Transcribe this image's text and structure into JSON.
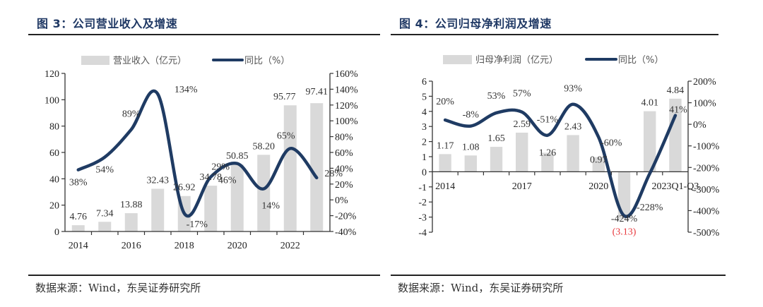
{
  "colors": {
    "bar": "#d9d9d9",
    "line": "#1f3b63",
    "title": "#1f3864",
    "negative_label": "#e8383d",
    "axis": "#333333"
  },
  "source_text": "数据来源：Wind，东吴证券研究所",
  "chart_data": [
    {
      "type": "bar+line",
      "title": "图 3：公司营业收入及增速",
      "legend": {
        "bar": "营业收入（亿元）",
        "line": "同比（%）",
        "position": "top"
      },
      "categories": [
        "2014",
        "2015",
        "2016",
        "2017",
        "2018",
        "2019",
        "2020",
        "2021",
        "2022",
        "2023"
      ],
      "x_tick_labels": [
        "2014",
        "",
        "2016",
        "",
        "2018",
        "",
        "2020",
        "",
        "2022",
        ""
      ],
      "series": [
        {
          "name": "营业收入（亿元）",
          "type": "bar",
          "axis": "left",
          "values": [
            4.76,
            7.34,
            13.88,
            32.43,
            26.92,
            34.78,
            50.85,
            58.2,
            95.77,
            97.41
          ],
          "labels": [
            "4.76",
            "7.34",
            "13.88",
            "32.43",
            "26.92",
            "34.78",
            "50.85",
            "58.20",
            "95.77",
            "97.41"
          ]
        },
        {
          "name": "同比（%）",
          "type": "line",
          "axis": "right",
          "values": [
            38,
            54,
            89,
            134,
            -17,
            29,
            46,
            14,
            65,
            28
          ],
          "labels": [
            "38%",
            "54%",
            "89%",
            "134%",
            "-17%",
            "29%",
            "46%",
            "14%",
            "65%",
            "28%"
          ]
        }
      ],
      "left_axis": {
        "range": [
          0,
          120
        ],
        "ticks": [
          "0",
          "20",
          "40",
          "60",
          "80",
          "100",
          "120"
        ]
      },
      "right_axis": {
        "range": [
          -40,
          160
        ],
        "ticks": [
          "-40%",
          "-20%",
          "0%",
          "20%",
          "40%",
          "60%",
          "80%",
          "100%",
          "120%",
          "140%",
          "160%"
        ]
      }
    },
    {
      "type": "bar+line",
      "title": "图 4：公司归母净利润及增速",
      "legend": {
        "bar": "归母净利润（亿元）",
        "line": "同比（%）",
        "position": "top"
      },
      "categories": [
        "2014",
        "2015",
        "2016",
        "2017",
        "2018",
        "2019",
        "2020",
        "2021",
        "2022",
        "2023Q1-Q3"
      ],
      "x_tick_labels": [
        "2014",
        "",
        "",
        "2017",
        "",
        "",
        "2020",
        "",
        "",
        "2023Q1-Q3"
      ],
      "series": [
        {
          "name": "归母净利润（亿元）",
          "type": "bar",
          "axis": "left",
          "values": [
            1.17,
            1.08,
            1.65,
            2.59,
            1.26,
            2.43,
            0.97,
            -3.13,
            4.01,
            4.84
          ],
          "labels": [
            "1.17",
            "1.08",
            "1.65",
            "2.59",
            "1.26",
            "2.43",
            "0.97",
            "(3.13)",
            "4.01",
            "4.84"
          ]
        },
        {
          "name": "同比（%）",
          "type": "line",
          "axis": "right",
          "values": [
            20,
            -8,
            53,
            57,
            -51,
            93,
            -60,
            -424,
            -228,
            41
          ],
          "labels": [
            "20%",
            "-8%",
            "53%",
            "57%",
            "-51%",
            "93%",
            "-60%",
            "-424%",
            "-228%",
            "41%"
          ]
        }
      ],
      "left_axis": {
        "range": [
          -4,
          6
        ],
        "ticks": [
          "-4",
          "-3",
          "-2",
          "-1",
          "0",
          "1",
          "2",
          "3",
          "4",
          "5",
          "6"
        ]
      },
      "right_axis": {
        "range": [
          -500,
          200
        ],
        "ticks": [
          "-500%",
          "-400%",
          "-300%",
          "-200%",
          "-100%",
          "0%",
          "100%",
          "200%"
        ]
      }
    }
  ]
}
